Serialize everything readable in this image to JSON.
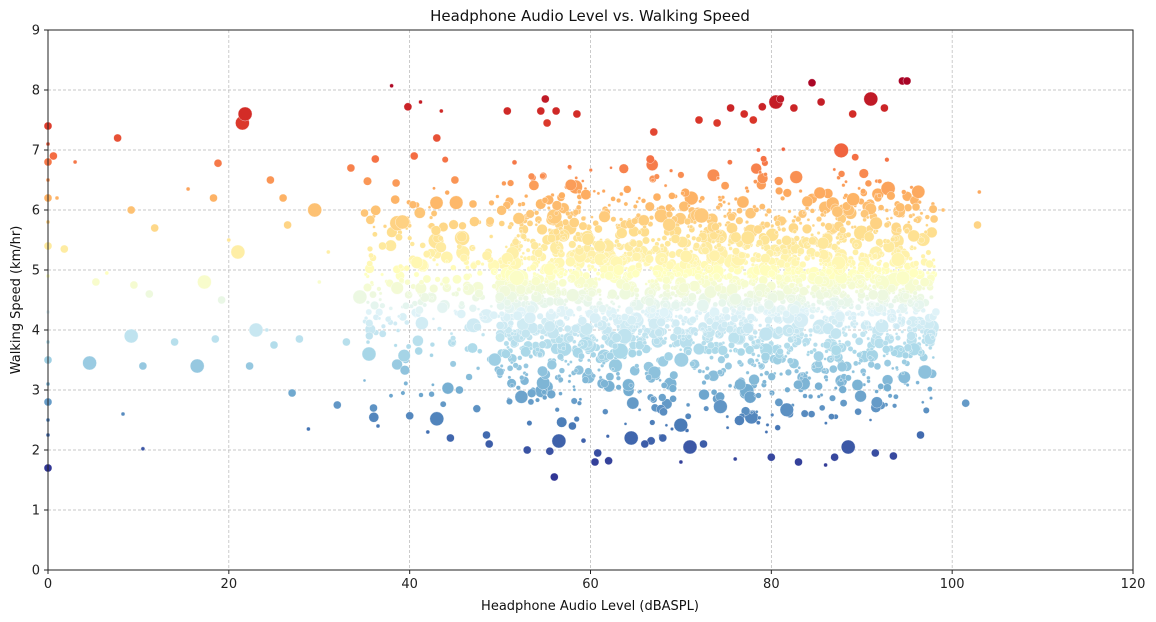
{
  "chart_data": {
    "type": "scatter",
    "title": "Headphone Audio Level vs. Walking Speed",
    "xlabel": "Headphone Audio Level (dBASPL)",
    "ylabel": "Walking Speed (km/hr)",
    "xlim": [
      0,
      120
    ],
    "ylim": [
      0,
      9
    ],
    "xticks": [
      0,
      20,
      40,
      60,
      80,
      100,
      120
    ],
    "yticks": [
      0,
      1,
      2,
      3,
      4,
      5,
      6,
      7,
      8,
      9
    ],
    "grid": true,
    "legend": "none",
    "colormap": [
      "#313695",
      "#4575b4",
      "#74add1",
      "#abd9e9",
      "#e0f3f8",
      "#ffffbf",
      "#fee090",
      "#fdae61",
      "#f46d43",
      "#d73027",
      "#a50026"
    ],
    "color_range": [
      1.7,
      8.2
    ],
    "points": [
      [
        0,
        1.7,
        2
      ],
      [
        0,
        2.25,
        1
      ],
      [
        0,
        2.5,
        1
      ],
      [
        0,
        2.8,
        2
      ],
      [
        0,
        3.1,
        1
      ],
      [
        0,
        3.5,
        2
      ],
      [
        0,
        3.8,
        1
      ],
      [
        0,
        4.3,
        1
      ],
      [
        0,
        4.9,
        1
      ],
      [
        0,
        5.4,
        2
      ],
      [
        0,
        5.8,
        1
      ],
      [
        0,
        6.2,
        2
      ],
      [
        0,
        6.5,
        1
      ],
      [
        0,
        6.8,
        2
      ],
      [
        0,
        7.1,
        1
      ],
      [
        0,
        7.4,
        2
      ],
      [
        0.6,
        6.9,
        2
      ],
      [
        1,
        6.2,
        1
      ],
      [
        1.8,
        5.35,
        2
      ],
      [
        3,
        6.8,
        1
      ],
      [
        4.6,
        3.45,
        3
      ],
      [
        5.3,
        4.8,
        2
      ],
      [
        6.5,
        4.95,
        1
      ],
      [
        7.7,
        7.2,
        2
      ],
      [
        8.3,
        2.6,
        1
      ],
      [
        9.2,
        3.9,
        3
      ],
      [
        9.2,
        6.0,
        2
      ],
      [
        9.5,
        4.75,
        2
      ],
      [
        10.5,
        3.4,
        2
      ],
      [
        10.5,
        2.02,
        1
      ],
      [
        11.2,
        4.6,
        2
      ],
      [
        11.8,
        5.7,
        2
      ],
      [
        14,
        3.8,
        2
      ],
      [
        15.5,
        6.35,
        1
      ],
      [
        16.5,
        3.4,
        3
      ],
      [
        17.3,
        4.8,
        3
      ],
      [
        18.3,
        6.2,
        2
      ],
      [
        18.5,
        3.85,
        2
      ],
      [
        18.8,
        6.78,
        2
      ],
      [
        19.2,
        4.5,
        2
      ],
      [
        20,
        5.5,
        1
      ],
      [
        21,
        5.3,
        3
      ],
      [
        21.5,
        7.45,
        3
      ],
      [
        21.8,
        7.6,
        3
      ],
      [
        22.3,
        3.4,
        2
      ],
      [
        23,
        4.0,
        3
      ],
      [
        24.2,
        4.0,
        1
      ],
      [
        24.6,
        6.5,
        2
      ],
      [
        25,
        3.75,
        2
      ],
      [
        26,
        6.2,
        2
      ],
      [
        26.5,
        5.75,
        2
      ],
      [
        27,
        2.95,
        2
      ],
      [
        27.8,
        3.85,
        2
      ],
      [
        28.8,
        2.35,
        1
      ],
      [
        29.5,
        6.0,
        3
      ],
      [
        30,
        4.8,
        1
      ],
      [
        31,
        5.3,
        1
      ],
      [
        32,
        2.75,
        2
      ],
      [
        33,
        3.8,
        2
      ],
      [
        33.5,
        6.7,
        2
      ],
      [
        34.5,
        4.55,
        3
      ],
      [
        35,
        5.95,
        2
      ],
      [
        35.5,
        3.6,
        3
      ],
      [
        36,
        2.7,
        2
      ],
      [
        36.5,
        2.4,
        1
      ],
      [
        36.2,
        6.85,
        2
      ],
      [
        37,
        5.4,
        2
      ],
      [
        38,
        8.07,
        1
      ],
      [
        38.5,
        6.45,
        2
      ],
      [
        39.2,
        5.8,
        3
      ],
      [
        39.8,
        7.72,
        2
      ],
      [
        40,
        2.57,
        2
      ],
      [
        40.5,
        6.9,
        2
      ],
      [
        41.2,
        7.8,
        1
      ],
      [
        41,
        3.65,
        2
      ],
      [
        42,
        2.3,
        1
      ],
      [
        43,
        7.2,
        2
      ],
      [
        43,
        2.52,
        3
      ],
      [
        43.5,
        7.65,
        1
      ],
      [
        44.5,
        2.2,
        2
      ],
      [
        45,
        6.5,
        2
      ],
      [
        45.5,
        3.0,
        2
      ],
      [
        46,
        5.2,
        2
      ],
      [
        47,
        6.1,
        2
      ],
      [
        47.5,
        4.05,
        2
      ],
      [
        48.5,
        2.25,
        2
      ],
      [
        48.8,
        2.1,
        2
      ],
      [
        50,
        3.3,
        2
      ],
      [
        50.8,
        7.65,
        2
      ],
      [
        53,
        2.0,
        2
      ],
      [
        54.5,
        7.65,
        2
      ],
      [
        55,
        7.85,
        2
      ],
      [
        55.2,
        7.45,
        2
      ],
      [
        55.5,
        1.98,
        2
      ],
      [
        56,
        1.55,
        2
      ],
      [
        56.2,
        7.65,
        2
      ],
      [
        56.5,
        2.15,
        3
      ],
      [
        58,
        2.4,
        2
      ],
      [
        58.5,
        7.6,
        2
      ],
      [
        60.5,
        1.8,
        2
      ],
      [
        60.8,
        1.95,
        2
      ],
      [
        62,
        1.82,
        2
      ],
      [
        64.5,
        2.2,
        3
      ],
      [
        66,
        2.1,
        2
      ],
      [
        67,
        7.3,
        2
      ],
      [
        68,
        2.2,
        2
      ],
      [
        70,
        1.8,
        1
      ],
      [
        71,
        2.05,
        3
      ],
      [
        72,
        7.5,
        2
      ],
      [
        72.5,
        2.1,
        2
      ],
      [
        74,
        7.45,
        2
      ],
      [
        75.5,
        7.7,
        2
      ],
      [
        76,
        1.85,
        1
      ],
      [
        77,
        7.6,
        2
      ],
      [
        78,
        7.5,
        2
      ],
      [
        79,
        7.72,
        2
      ],
      [
        80,
        1.88,
        2
      ],
      [
        80.5,
        7.8,
        3
      ],
      [
        81,
        7.85,
        2
      ],
      [
        82.5,
        7.7,
        2
      ],
      [
        83,
        1.8,
        2
      ],
      [
        84.5,
        8.12,
        2
      ],
      [
        85.5,
        7.8,
        2
      ],
      [
        86,
        1.75,
        1
      ],
      [
        87,
        1.88,
        2
      ],
      [
        88.5,
        2.05,
        3
      ],
      [
        89,
        7.6,
        2
      ],
      [
        91,
        7.85,
        3
      ],
      [
        91.5,
        1.95,
        2
      ],
      [
        92.5,
        7.7,
        2
      ],
      [
        93.5,
        1.9,
        2
      ],
      [
        94.5,
        8.15,
        2
      ],
      [
        95,
        8.15,
        2
      ],
      [
        96,
        6.05,
        2
      ],
      [
        96.5,
        2.25,
        2
      ],
      [
        97,
        3.3,
        3
      ],
      [
        97.5,
        5.1,
        2
      ],
      [
        98,
        5.85,
        2
      ],
      [
        98.2,
        4.3,
        2
      ],
      [
        99,
        6.0,
        1
      ],
      [
        101.5,
        2.78,
        2
      ],
      [
        102.8,
        5.75,
        2
      ],
      [
        103,
        6.3,
        1
      ]
    ],
    "clusters": [
      {
        "x": [
          50,
          98
        ],
        "y": [
          1.9,
          7.3
        ],
        "count": 2800,
        "seed": 7
      },
      {
        "x": [
          35,
          50
        ],
        "y": [
          2.3,
          7.1
        ],
        "count": 260,
        "seed": 11
      }
    ]
  }
}
